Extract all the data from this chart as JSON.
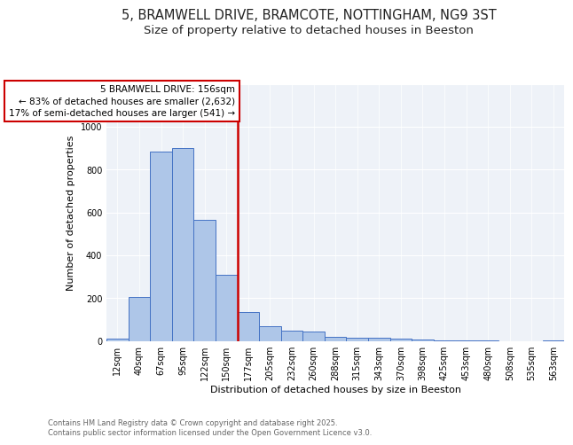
{
  "title": "5, BRAMWELL DRIVE, BRAMCOTE, NOTTINGHAM, NG9 3ST",
  "subtitle": "Size of property relative to detached houses in Beeston",
  "xlabel": "Distribution of detached houses by size in Beeston",
  "ylabel": "Number of detached properties",
  "bin_labels": [
    "12sqm",
    "40sqm",
    "67sqm",
    "95sqm",
    "122sqm",
    "150sqm",
    "177sqm",
    "205sqm",
    "232sqm",
    "260sqm",
    "288sqm",
    "315sqm",
    "343sqm",
    "370sqm",
    "398sqm",
    "425sqm",
    "453sqm",
    "480sqm",
    "508sqm",
    "535sqm",
    "563sqm"
  ],
  "bar_values": [
    10,
    205,
    885,
    900,
    565,
    310,
    135,
    68,
    48,
    42,
    18,
    15,
    15,
    10,
    5,
    2,
    1,
    1,
    0,
    0,
    2
  ],
  "bar_color": "#aec6e8",
  "bar_edge_color": "#4472c4",
  "property_line_label": "5 BRAMWELL DRIVE: 156sqm",
  "annotation_line1": "← 83% of detached houses are smaller (2,632)",
  "annotation_line2": "17% of semi-detached houses are larger (541) →",
  "annotation_box_color": "#ffffff",
  "annotation_box_edge": "#cc0000",
  "vline_color": "#cc0000",
  "vline_x": 5.5,
  "ylim": [
    0,
    1200
  ],
  "yticks": [
    0,
    200,
    400,
    600,
    800,
    1000,
    1200
  ],
  "bg_color": "#eef2f8",
  "footer_text": "Contains HM Land Registry data © Crown copyright and database right 2025.\nContains public sector information licensed under the Open Government Licence v3.0.",
  "title_fontsize": 10.5,
  "subtitle_fontsize": 9.5,
  "label_fontsize": 8,
  "tick_fontsize": 7,
  "footer_fontsize": 6,
  "annot_fontsize": 7.5
}
